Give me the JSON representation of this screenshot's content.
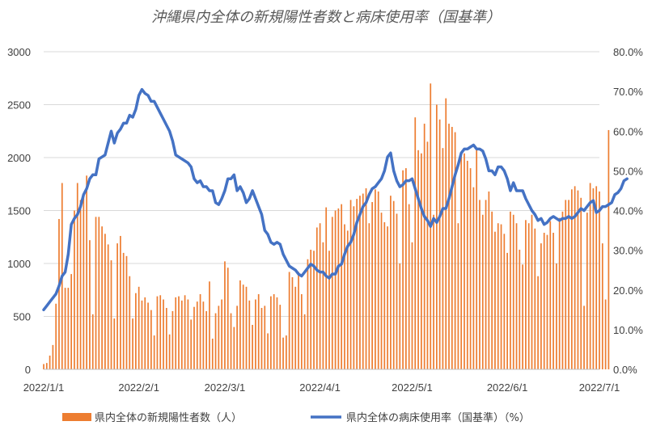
{
  "chart_data": {
    "type": "bar+line",
    "title": "沖縄県内全体の新規陽性者数と病床使用率（国基準）",
    "y_left": {
      "min": 0,
      "max": 3000,
      "ticks": [
        "0",
        "500",
        "1000",
        "1500",
        "2000",
        "2500",
        "3000"
      ]
    },
    "y_right": {
      "min": 0,
      "max": 0.8,
      "ticks": [
        "0.0%",
        "10.0%",
        "20.0%",
        "30.0%",
        "40.0%",
        "50.0%",
        "60.0%",
        "70.0%",
        "80.0%"
      ]
    },
    "x_range": [
      "2022-01-01",
      "2022-07-01"
    ],
    "x_ticks": [
      {
        "date": "2022-01-01",
        "label": "2022/1/1"
      },
      {
        "date": "2022-02-01",
        "label": "2022/2/1"
      },
      {
        "date": "2022-03-01",
        "label": "2022/3/1"
      },
      {
        "date": "2022-04-01",
        "label": "2022/4/1"
      },
      {
        "date": "2022-05-01",
        "label": "2022/5/1"
      },
      {
        "date": "2022-06-01",
        "label": "2022/6/1"
      },
      {
        "date": "2022-07-01",
        "label": "2022/7/1"
      }
    ],
    "grid": true,
    "legend_position": "bottom",
    "colors": {
      "bar": "#ED7D31",
      "line": "#4472C4"
    },
    "series": [
      {
        "name": "県内全体の新規陽性者数（人）",
        "type": "bar",
        "axis": "left",
        "start_date": "2022-01-01",
        "values": [
          50,
          60,
          130,
          230,
          620,
          1420,
          1760,
          770,
          770,
          900,
          1500,
          1760,
          1600,
          1640,
          1830,
          1220,
          520,
          1440,
          1440,
          1350,
          1280,
          1180,
          1030,
          480,
          1190,
          1260,
          1100,
          1070,
          880,
          480,
          720,
          780,
          650,
          680,
          630,
          560,
          320,
          690,
          700,
          660,
          580,
          330,
          550,
          680,
          690,
          650,
          700,
          660,
          470,
          590,
          640,
          710,
          640,
          550,
          830,
          290,
          530,
          600,
          660,
          1020,
          960,
          530,
          400,
          600,
          840,
          800,
          780,
          650,
          420,
          660,
          710,
          580,
          600,
          340,
          690,
          710,
          680,
          610,
          300,
          320,
          920,
          870,
          780,
          920,
          710,
          520,
          1040,
          1130,
          1120,
          1340,
          1380,
          1200,
          1530,
          1120,
          1440,
          1500,
          1520,
          1560,
          1370,
          1310,
          1600,
          1540,
          1610,
          1640,
          1660,
          1710,
          1380,
          1580,
          1700,
          1680,
          1480,
          1390,
          1350,
          1640,
          1590,
          1470,
          1000,
          1880,
          1900,
          1560,
          1200,
          2380,
          2070,
          2040,
          2320,
          2150,
          2700,
          1460,
          2500,
          2360,
          2090,
          2560,
          2320,
          2290,
          2240,
          1380,
          2020,
          2040,
          1970,
          1900,
          1720,
          2080,
          1600,
          1460,
          1600,
          1680,
          1490,
          1300,
          1380,
          1370,
          1280,
          1100,
          1490,
          1460,
          1380,
          1130,
          990,
          1410,
          1380,
          1460,
          1330,
          880,
          1190,
          1290,
          1270,
          1400,
          1290,
          1000,
          1430,
          1490,
          1600,
          1600,
          1700,
          1730,
          1690,
          1620,
          600,
          1480,
          1760,
          1710,
          1730,
          1680,
          1190,
          660,
          2260
        ]
      },
      {
        "name": "県内全体の病床使用率（国基準）（%）",
        "type": "line",
        "axis": "right",
        "start_date": "2022-01-01",
        "values": [
          0.15,
          0.16,
          0.17,
          0.18,
          0.19,
          0.21,
          0.235,
          0.245,
          0.29,
          0.365,
          0.38,
          0.39,
          0.41,
          0.44,
          0.455,
          0.48,
          0.49,
          0.49,
          0.53,
          0.535,
          0.54,
          0.57,
          0.6,
          0.57,
          0.595,
          0.605,
          0.62,
          0.62,
          0.64,
          0.635,
          0.655,
          0.69,
          0.705,
          0.695,
          0.69,
          0.675,
          0.675,
          0.66,
          0.645,
          0.63,
          0.615,
          0.6,
          0.575,
          0.54,
          0.535,
          0.53,
          0.525,
          0.52,
          0.51,
          0.48,
          0.47,
          0.475,
          0.46,
          0.46,
          0.45,
          0.45,
          0.42,
          0.415,
          0.43,
          0.45,
          0.48,
          0.48,
          0.49,
          0.45,
          0.46,
          0.445,
          0.42,
          0.43,
          0.45,
          0.43,
          0.41,
          0.39,
          0.35,
          0.34,
          0.32,
          0.315,
          0.32,
          0.315,
          0.29,
          0.275,
          0.26,
          0.255,
          0.25,
          0.24,
          0.235,
          0.245,
          0.255,
          0.265,
          0.26,
          0.25,
          0.245,
          0.245,
          0.235,
          0.23,
          0.24,
          0.24,
          0.26,
          0.265,
          0.29,
          0.31,
          0.32,
          0.34,
          0.37,
          0.39,
          0.41,
          0.42,
          0.44,
          0.455,
          0.46,
          0.47,
          0.48,
          0.5,
          0.535,
          0.545,
          0.5,
          0.475,
          0.46,
          0.465,
          0.475,
          0.475,
          0.48,
          0.455,
          0.43,
          0.405,
          0.385,
          0.375,
          0.36,
          0.38,
          0.37,
          0.385,
          0.405,
          0.405,
          0.43,
          0.46,
          0.49,
          0.515,
          0.545,
          0.555,
          0.555,
          0.56,
          0.565,
          0.555,
          0.555,
          0.55,
          0.53,
          0.5,
          0.5,
          0.49,
          0.51,
          0.51,
          0.5,
          0.48,
          0.45,
          0.47,
          0.45,
          0.45,
          0.45,
          0.43,
          0.415,
          0.4,
          0.39,
          0.375,
          0.38,
          0.365,
          0.37,
          0.38,
          0.385,
          0.38,
          0.375,
          0.38,
          0.38,
          0.385,
          0.38,
          0.385,
          0.395,
          0.405,
          0.4,
          0.41,
          0.42,
          0.425,
          0.395,
          0.4,
          0.41,
          0.41,
          0.415,
          0.42,
          0.44,
          0.445,
          0.455,
          0.475,
          0.48
        ]
      }
    ]
  }
}
